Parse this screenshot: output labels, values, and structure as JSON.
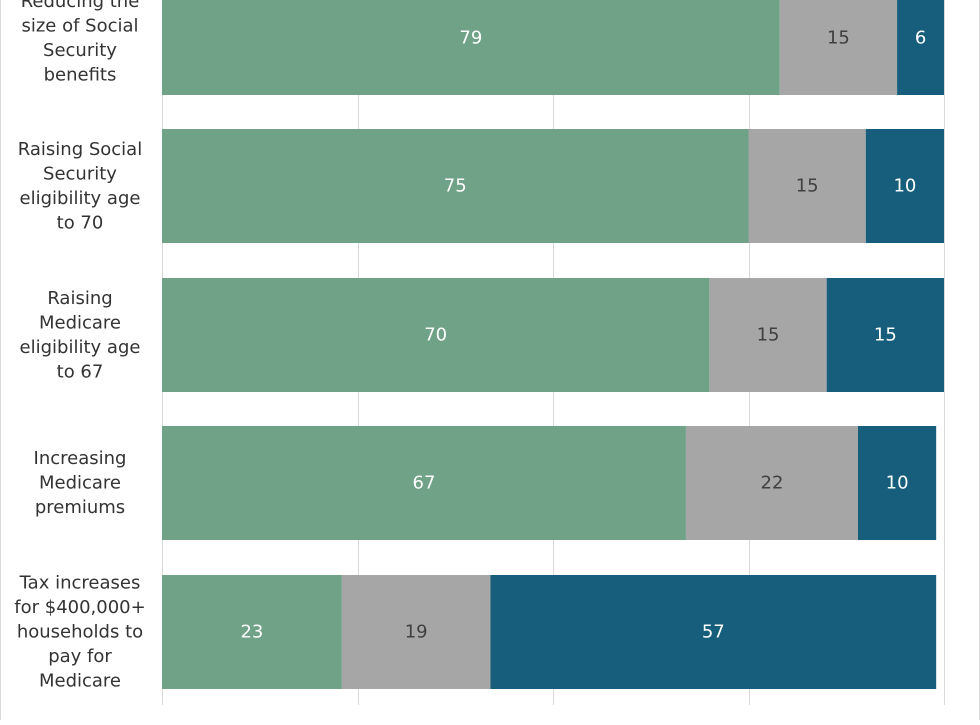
{
  "colors": {
    "support": "#6fa287",
    "neutral": "#a6a6a6",
    "oppose": "#175e7d",
    "grid": "#d9d9d9",
    "label_dark": "#404040",
    "label_light": "#ffffff"
  },
  "chart_data": {
    "type": "bar",
    "orientation": "horizontal",
    "stacked": true,
    "categories": [
      [
        "Reducing the",
        "size of Social",
        "Security",
        "benefits"
      ],
      [
        "Raising Social",
        "Security",
        "eligibility age",
        "to 70"
      ],
      [
        "Raising",
        "Medicare",
        "eligibility age",
        "to 67"
      ],
      [
        "Increasing",
        "Medicare",
        "premiums"
      ],
      [
        "Tax increases",
        "for $400,000+",
        "households to",
        "pay for",
        "Medicare"
      ]
    ],
    "series": [
      {
        "values": [
          79,
          75,
          70,
          67,
          23
        ]
      },
      {
        "values": [
          15,
          15,
          15,
          22,
          19
        ]
      },
      {
        "values": [
          6,
          10,
          15,
          10,
          57
        ]
      }
    ],
    "xlim": [
      0,
      100
    ],
    "grid": true,
    "legend": "none"
  }
}
